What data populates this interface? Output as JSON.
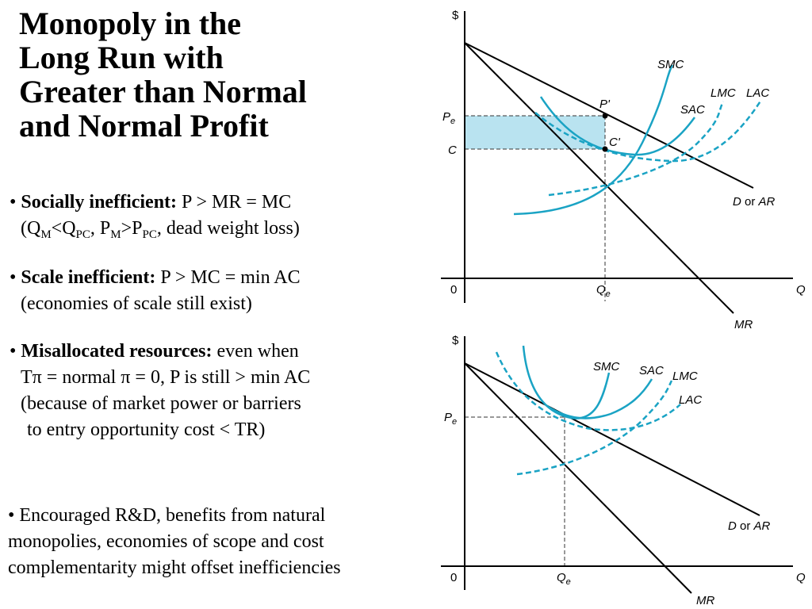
{
  "title": {
    "lines": [
      "Monopoly in the",
      "Long Run with",
      "Greater than Normal",
      "and Normal Profit"
    ]
  },
  "bullets": {
    "b1": {
      "bold": "Socially inefficient:",
      "rest": " P > MR = MC",
      "l2_open": "(Q",
      "sub_m": "M",
      "lt": "<Q",
      "sub_pc": "PC",
      "comma_p": ", P",
      "gt": ">P",
      "tail": ", dead weight loss)"
    },
    "b2": {
      "bold": "Scale inefficient:",
      "rest": " P > MC = min AC",
      "line2": "(economies of scale still exist)"
    },
    "b3": {
      "bold": "Misallocated resources:",
      "rest": " even when",
      "line2": "Tπ = normal π = 0, P is still > min AC",
      "line3": "(because of market power or barriers",
      "line4": "to entry opportunity cost < TR)"
    },
    "b4": {
      "line1": "• Encouraged R&D, benefits from natural",
      "line2": "monopolies, economies of scope and cost",
      "line3": "complementarity might offset inefficiencies"
    }
  },
  "graph_top": {
    "y_axis": "$",
    "x_axis": "Q",
    "origin": "0",
    "pe": "P",
    "pe_sub": "e",
    "c": "C",
    "qe": "Q",
    "qe_sub": "e",
    "p_prime": "P'",
    "c_prime": "C'",
    "smc": "SMC",
    "sac": "SAC",
    "lmc": "LMC",
    "lac": "LAC",
    "demand_d": "D",
    "demand_or": " or ",
    "demand_ar": "AR",
    "mr": "MR"
  },
  "graph_bottom": {
    "y_axis": "$",
    "x_axis": "Q",
    "origin": "0",
    "pe": "P",
    "pe_sub": "e",
    "qe": "Q",
    "qe_sub": "e",
    "smc": "SMC",
    "sac": "SAC",
    "lmc": "LMC",
    "lac": "LAC",
    "demand_d": "D",
    "demand_or": " or ",
    "demand_ar": "AR",
    "mr": "MR"
  },
  "colors": {
    "curve": "#1aa3c4",
    "profit_fill": "#b9e3f0",
    "line": "#000000"
  }
}
